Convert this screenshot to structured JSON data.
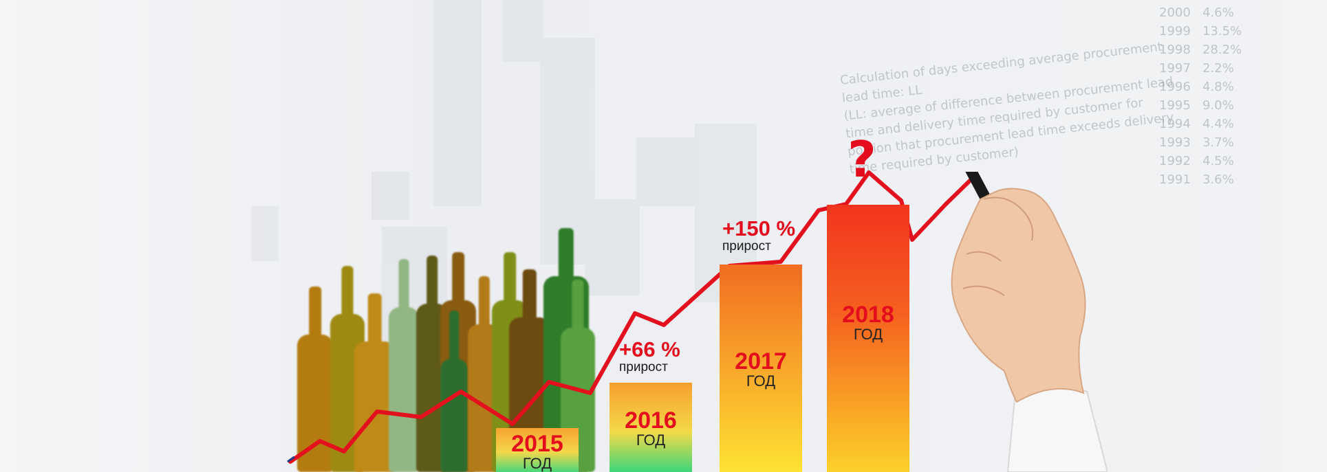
{
  "bars": [
    {
      "year": "2015",
      "unit": "ГОД"
    },
    {
      "year": "2016",
      "unit": "ГОД"
    },
    {
      "year": "2017",
      "unit": "ГОД"
    },
    {
      "year": "2018",
      "unit": "ГОД"
    }
  ],
  "growth": [
    {
      "pct": "+66 %",
      "label": "прирост"
    },
    {
      "pct": "+150 %",
      "label": "прирост"
    }
  ],
  "question_mark": "?",
  "background_text": {
    "notes": "Calculation of days exceeding average procurement\nlead time: LL\n(LL: average of difference between procurement lead\ntime and delivery time required by customer for\nportion that procurement lead time exceeds delivery\ntime required by customer)",
    "numbers": "2000   4.6%\n1999   13.5%\n1998   28.2%\n1997   2.2%\n1996   4.8%\n1995   9.0%\n1994   4.4%\n1993   3.7%\n1992   4.5%\n1991   3.6%"
  },
  "colors": {
    "accent_red": "#e30d1d",
    "line_red": "#e3101e"
  }
}
